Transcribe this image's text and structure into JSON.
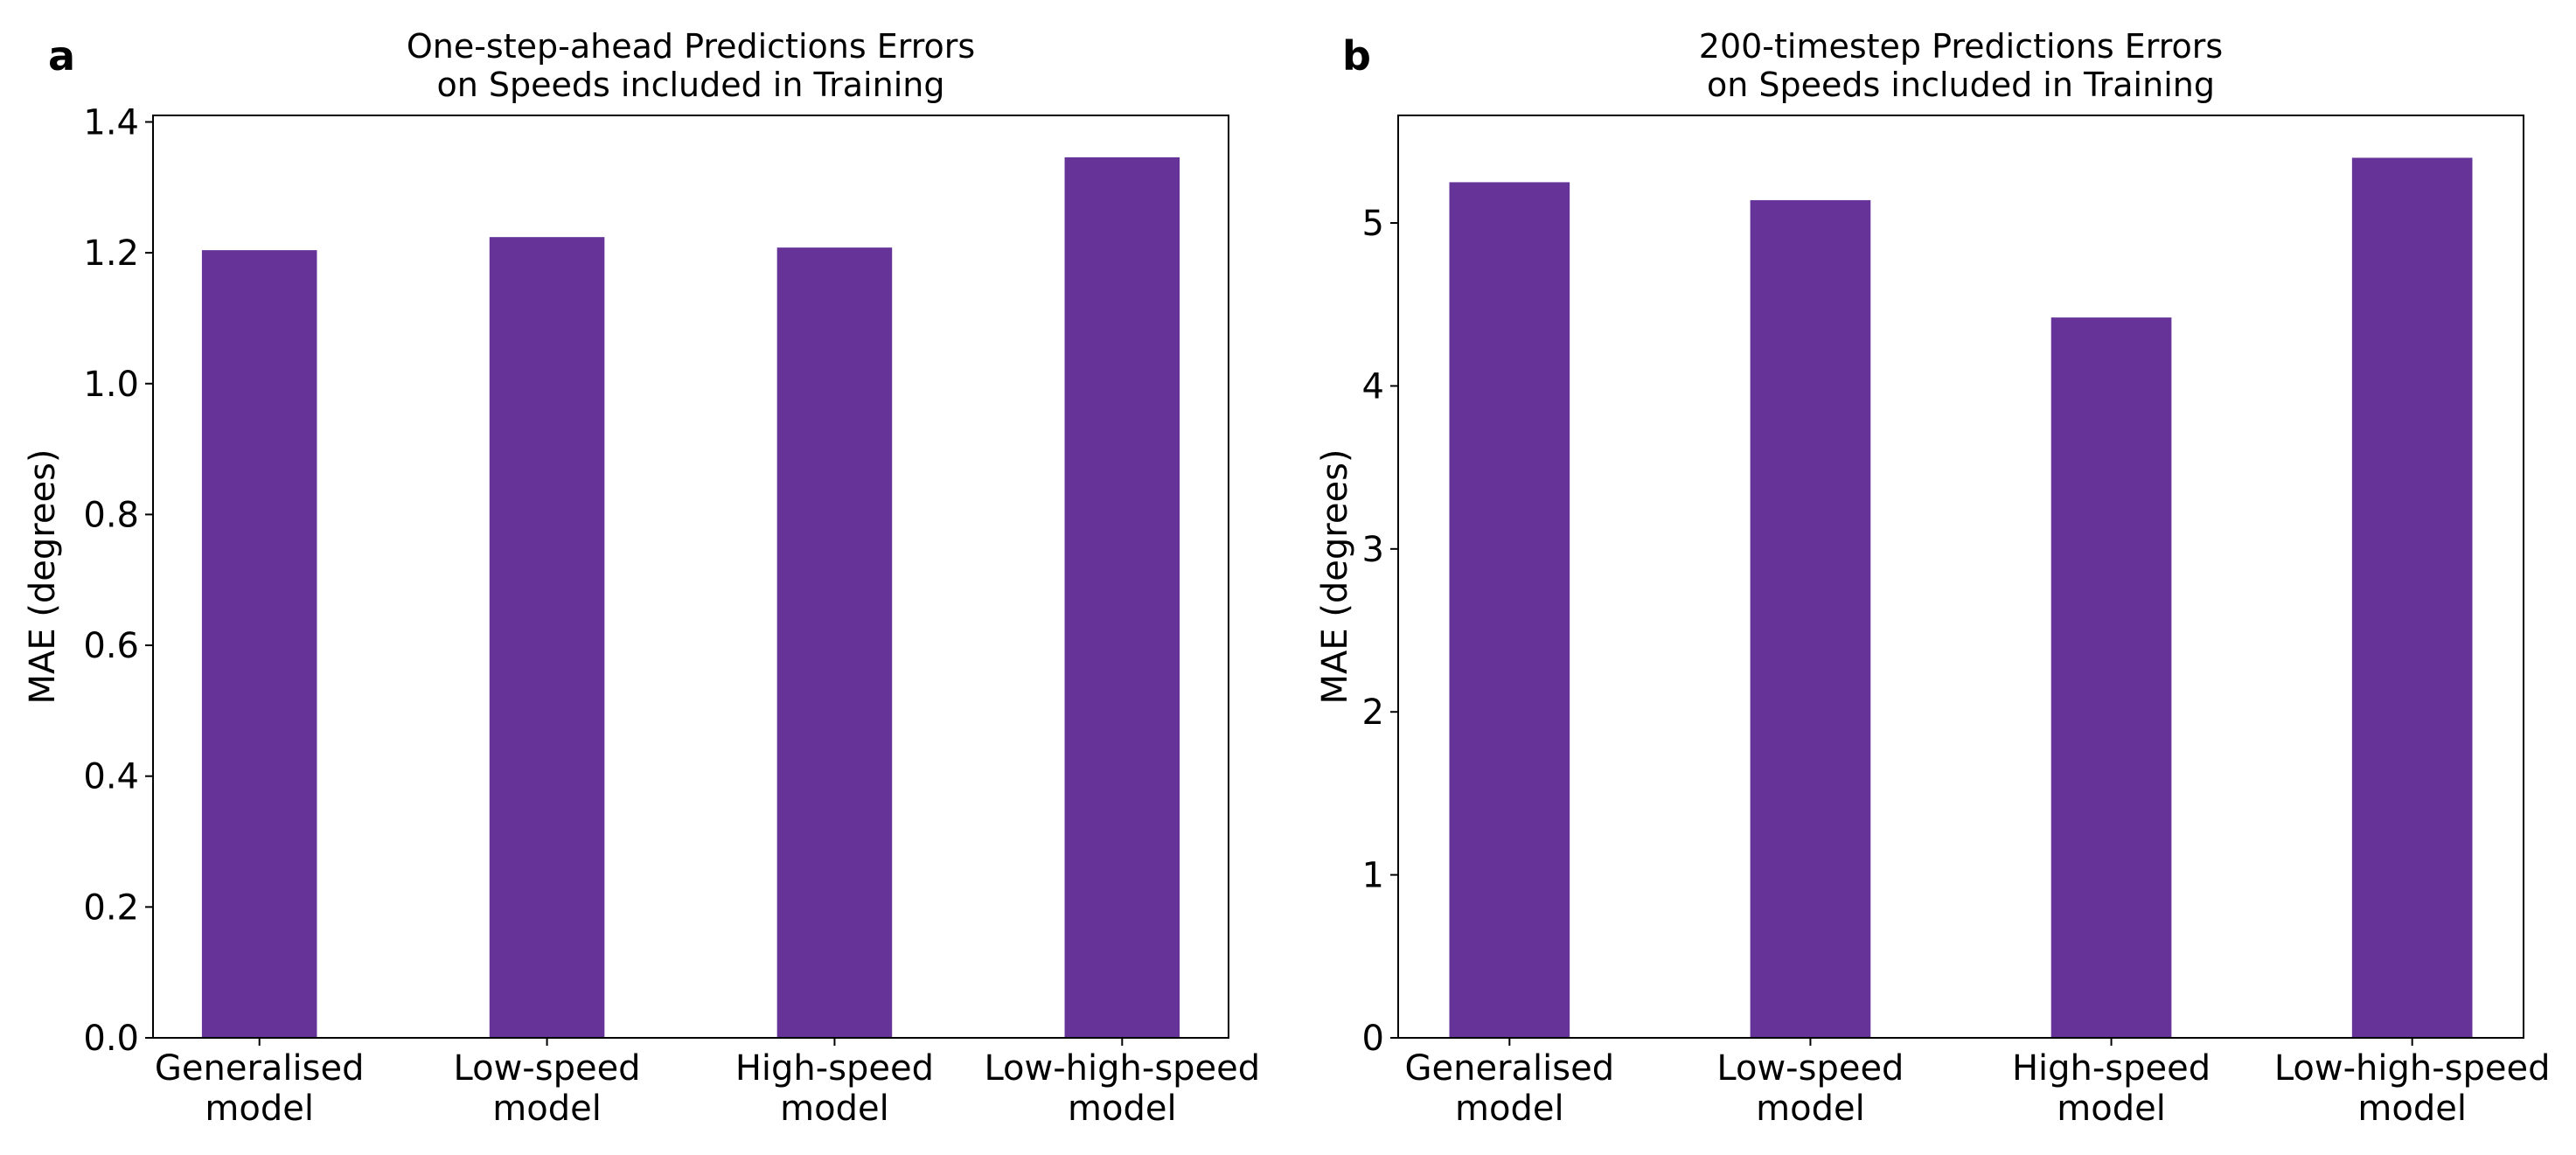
{
  "chart_data": [
    {
      "type": "bar",
      "panel_label": "a",
      "title": [
        "One-step-ahead Predictions Errors",
        "on Speeds included in Training"
      ],
      "xlabel": "",
      "ylabel": "MAE (degrees)",
      "categories": [
        [
          "Generalised",
          "model"
        ],
        [
          "Low-speed",
          "model"
        ],
        [
          "High-speed",
          "model"
        ],
        [
          "Low-high-speed",
          "model"
        ]
      ],
      "values": [
        1.204,
        1.224,
        1.208,
        1.346
      ],
      "ylim": [
        0,
        1.41
      ],
      "yticks": [
        0.0,
        0.2,
        0.4,
        0.6,
        0.8,
        1.0,
        1.2,
        1.4
      ],
      "ytick_labels": [
        "0.0",
        "0.2",
        "0.4",
        "0.6",
        "0.8",
        "1.0",
        "1.2",
        "1.4"
      ],
      "grid": false,
      "color": "#663399"
    },
    {
      "type": "bar",
      "panel_label": "b",
      "title": [
        "200-timestep Predictions Errors",
        "on Speeds included in Training"
      ],
      "xlabel": "",
      "ylabel": "MAE (degrees)",
      "categories": [
        [
          "Generalised",
          "model"
        ],
        [
          "Low-speed",
          "model"
        ],
        [
          "High-speed",
          "model"
        ],
        [
          "Low-high-speed",
          "model"
        ]
      ],
      "values": [
        5.25,
        5.14,
        4.42,
        5.4
      ],
      "ylim": [
        0,
        5.66
      ],
      "yticks": [
        0,
        1,
        2,
        3,
        4,
        5
      ],
      "ytick_labels": [
        "0",
        "1",
        "2",
        "3",
        "4",
        "5"
      ],
      "grid": false,
      "color": "#663399"
    }
  ]
}
